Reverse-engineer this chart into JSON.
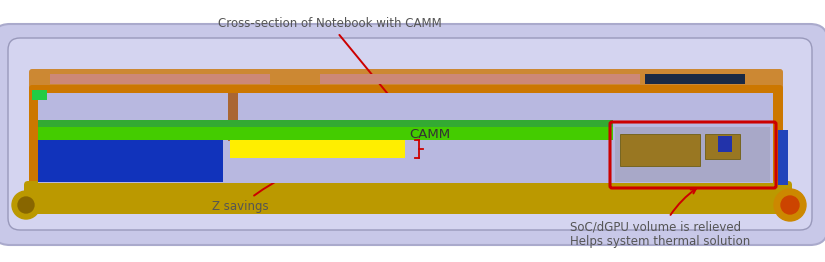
{
  "fig_width": 8.25,
  "fig_height": 2.62,
  "dpi": 100,
  "bg_color": "#ffffff",
  "cross_section_label": "Cross-section of Notebook with CAMM",
  "label_color": "#555555",
  "camm_label": "CAMM",
  "z_savings_label": "Z savings",
  "soc_label_line1": "SoC/dGPU volume is relieved",
  "soc_label_line2": "Helps system thermal solution",
  "arrow_color": "#cc0000",
  "red_box_color": "#cc0000",
  "laptop_outer_fill": "#c8c8e8",
  "laptop_outer_edge": "#aaaacc",
  "laptop_inner_fill": "#d4d4f0",
  "orange_frame": "#cc7700",
  "gold_bottom": "#bb9900",
  "green_bar": "#44cc00",
  "yellow_bar": "#ffee00",
  "blue_block": "#1133bb",
  "brown_left": "#aa6633",
  "light_interior": "#b8b8e0",
  "soc_fill": "#a8a8c8",
  "soc_chip": "#997722",
  "blue_accent": "#2233aa",
  "pink_bar": "#cc8877",
  "dark_navy": "#1a2a44",
  "copper_pipe": "#cc8833",
  "right_gold": "#cc8800"
}
